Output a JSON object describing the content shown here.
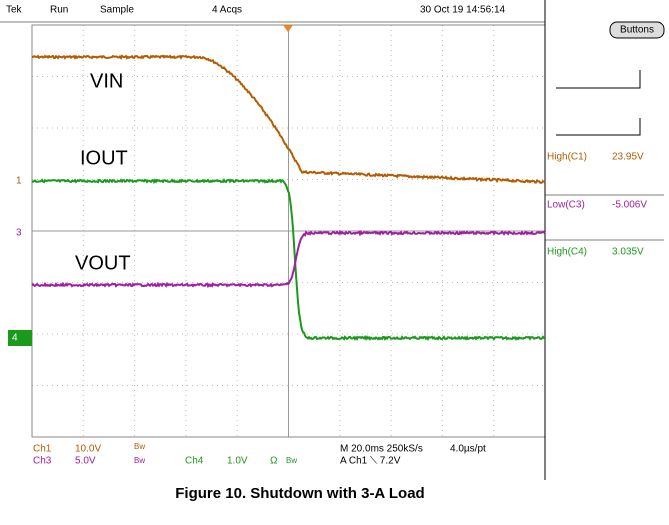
{
  "status_bar": {
    "brand": "Tek",
    "state": "Run",
    "mode": "Sample",
    "acquisitions": "4 Acqs",
    "timestamp": "30 Oct 19 14:56:14"
  },
  "trace_labels": {
    "vin": "VIN",
    "iout": "IOUT",
    "vout": "VOUT"
  },
  "channel_markers": {
    "ch1": "1",
    "ch3": "3",
    "ch4": "4"
  },
  "side_panel": {
    "button": "Buttons",
    "measurements": [
      {
        "name": "High(C1)",
        "value": "23.95V"
      },
      {
        "name": "Low(C3)",
        "value": "-5.006V"
      },
      {
        "name": "High(C4)",
        "value": "3.035V"
      }
    ]
  },
  "settings": {
    "ch1": {
      "name": "Ch1",
      "scale": "10.0V",
      "bw": "Bw"
    },
    "ch3": {
      "name": "Ch3",
      "scale": "5.0V",
      "bw": "Bw"
    },
    "ch4": {
      "name": "Ch4",
      "scale": "1.0V",
      "ohm": "Ω",
      "bw": "Bw"
    },
    "timebase": "M 20.0ms 250kS/s",
    "resolution": "4.0µs/pt",
    "trigger": "A  Ch1  ⟍  7.2V"
  },
  "caption": "Figure 10. Shutdown with 3-A Load"
}
